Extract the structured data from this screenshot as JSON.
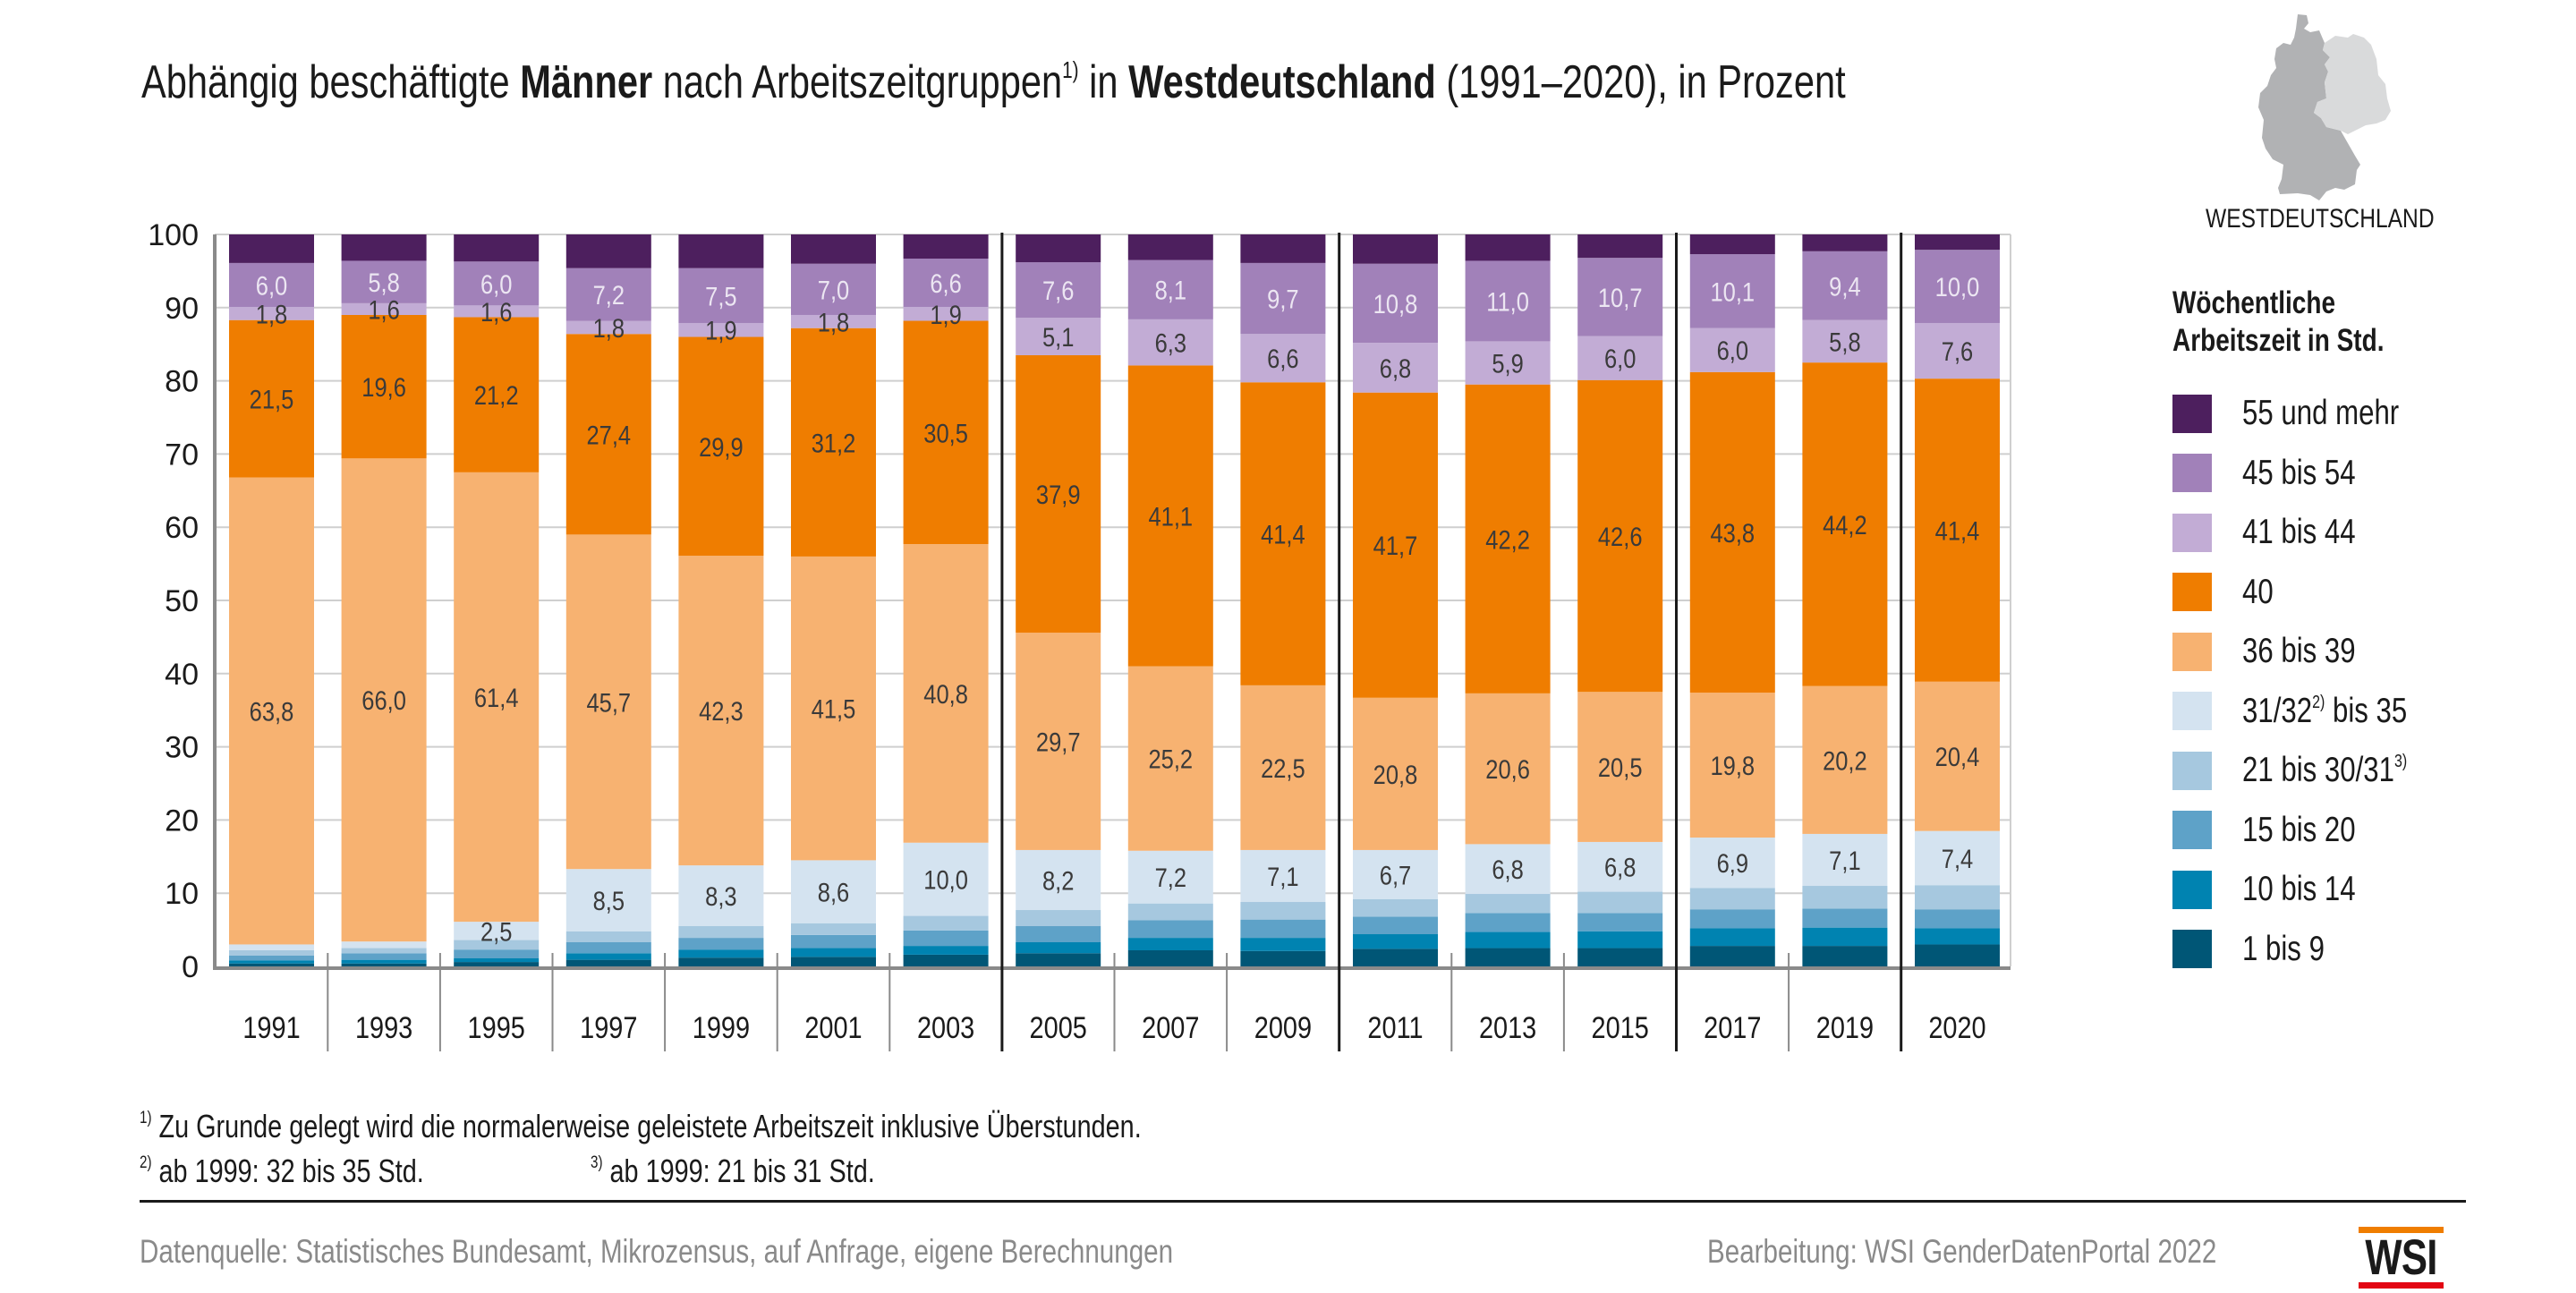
{
  "header": {
    "title_parts": {
      "p1": "Abhängig beschäftigte ",
      "p2": "Männer",
      "p3": " nach Arbeitszeitgruppen",
      "sup": "1)",
      "p4": " in ",
      "p5": "Westdeutschland",
      "p6": " (1991–2020), in Prozent"
    },
    "map_label": "WESTDEUTSCHLAND",
    "map_colors": {
      "west": "#b1b2b4",
      "east": "#d9dadb"
    }
  },
  "legend": {
    "title_line1": "Wöchentliche",
    "title_line2": "Arbeitszeit in Std.",
    "items": [
      {
        "label": "55 und mehr",
        "sup": "",
        "suffix": "",
        "color": "#4d1f5e"
      },
      {
        "label": "45 bis 54",
        "sup": "",
        "suffix": "",
        "color": "#a181b9"
      },
      {
        "label": "41 bis 44",
        "sup": "",
        "suffix": "",
        "color": "#c2acd5"
      },
      {
        "label": "40",
        "sup": "",
        "suffix": "",
        "color": "#ef7d00"
      },
      {
        "label": "36 bis 39",
        "sup": "",
        "suffix": "",
        "color": "#f7b271"
      },
      {
        "label": "31/32",
        "sup": "2)",
        "suffix": " bis 35",
        "color": "#d4e3f0"
      },
      {
        "label": "21 bis 30/31",
        "sup": "3)",
        "suffix": "",
        "color": "#a6c8df"
      },
      {
        "label": "15 bis 20",
        "sup": "",
        "suffix": "",
        "color": "#5ea2c8"
      },
      {
        "label": "10 bis 14",
        "sup": "",
        "suffix": "",
        "color": "#0083b1"
      },
      {
        "label": "1 bis 9",
        "sup": "",
        "suffix": "",
        "color": "#005676"
      }
    ]
  },
  "chart_data": {
    "type": "bar",
    "stacked": true,
    "title": "Abhängig beschäftigte Männer nach Arbeitszeitgruppen in Westdeutschland (1991–2020), in Prozent",
    "xlabel": "",
    "ylabel": "",
    "ylim": [
      0,
      100
    ],
    "yticks": [
      0,
      10,
      20,
      30,
      40,
      50,
      60,
      70,
      80,
      90,
      100
    ],
    "grid": true,
    "legend_position": "right",
    "categories": [
      "1991",
      "1993",
      "1995",
      "1997",
      "1999",
      "2001",
      "2003",
      "2005",
      "2007",
      "2009",
      "2011",
      "2013",
      "2015",
      "2017",
      "2019",
      "2020"
    ],
    "group_separators_after": [
      "2003",
      "2009",
      "2015",
      "2019"
    ],
    "series": [
      {
        "name": "1 bis 9",
        "color": "#005676",
        "labeled": false,
        "values": [
          0.4,
          0.4,
          0.6,
          0.9,
          1.2,
          1.3,
          1.6,
          1.8,
          2.2,
          2.1,
          2.4,
          2.5,
          2.5,
          2.8,
          2.8,
          3.0
        ]
      },
      {
        "name": "10 bis 14",
        "color": "#0083b1",
        "labeled": false,
        "values": [
          0.4,
          0.5,
          0.5,
          0.9,
          1.1,
          1.2,
          1.2,
          1.5,
          1.7,
          1.8,
          2.0,
          2.2,
          2.3,
          2.4,
          2.5,
          2.2
        ]
      },
      {
        "name": "15 bis 20",
        "color": "#5ea2c8",
        "labeled": false,
        "values": [
          0.7,
          0.9,
          1.2,
          1.5,
          1.6,
          1.8,
          2.1,
          2.2,
          2.4,
          2.5,
          2.4,
          2.6,
          2.5,
          2.6,
          2.6,
          2.6
        ]
      },
      {
        "name": "21 bis 30/31",
        "color": "#a6c8df",
        "labeled": false,
        "values": [
          0.7,
          0.7,
          1.3,
          1.5,
          1.6,
          1.6,
          2.0,
          2.2,
          2.3,
          2.4,
          2.4,
          2.6,
          2.9,
          2.9,
          3.1,
          3.3
        ]
      },
      {
        "name": "31/32 bis 35",
        "color": "#d4e3f0",
        "labeled": true,
        "values": [
          0.8,
          0.9,
          2.5,
          8.5,
          8.3,
          8.6,
          10.0,
          8.2,
          7.2,
          7.1,
          6.7,
          6.8,
          6.8,
          6.9,
          7.1,
          7.4
        ],
        "labels": [
          "",
          "",
          "2,5",
          "8,5",
          "8,3",
          "8,6",
          "10,0",
          "8,2",
          "7,2",
          "7,1",
          "6,7",
          "6,8",
          "6,8",
          "6,9",
          "7,1",
          "7,4"
        ]
      },
      {
        "name": "36 bis 39",
        "color": "#f7b271",
        "labeled": true,
        "values": [
          63.8,
          66.0,
          61.4,
          45.7,
          42.3,
          41.5,
          40.8,
          29.7,
          25.2,
          22.5,
          20.8,
          20.6,
          20.5,
          19.8,
          20.2,
          20.4
        ],
        "labels": [
          "63,8",
          "66,0",
          "61,4",
          "45,7",
          "42,3",
          "41,5",
          "40,8",
          "29,7",
          "25,2",
          "22,5",
          "20,8",
          "20,6",
          "20,5",
          "19,8",
          "20,2",
          "20,4"
        ]
      },
      {
        "name": "40",
        "color": "#ef7d00",
        "labeled": true,
        "values": [
          21.5,
          19.6,
          21.2,
          27.4,
          29.9,
          31.2,
          30.5,
          37.9,
          41.1,
          41.4,
          41.7,
          42.2,
          42.6,
          43.8,
          44.2,
          41.4
        ],
        "labels": [
          "21,5",
          "19,6",
          "21,2",
          "27,4",
          "29,9",
          "31,2",
          "30,5",
          "37,9",
          "41,1",
          "41,4",
          "41,7",
          "42,2",
          "42,6",
          "43,8",
          "44,2",
          "41,4"
        ]
      },
      {
        "name": "41 bis 44",
        "color": "#c2acd5",
        "labeled": true,
        "values": [
          1.8,
          1.6,
          1.6,
          1.8,
          1.9,
          1.8,
          1.9,
          5.1,
          6.3,
          6.6,
          6.8,
          5.9,
          6.0,
          6.0,
          5.8,
          7.6
        ],
        "labels": [
          "1,8",
          "1,6",
          "1,6",
          "1,8",
          "1,9",
          "1,8",
          "1,9",
          "5,1",
          "6,3",
          "6,6",
          "6,8",
          "5,9",
          "6,0",
          "6,0",
          "5,8",
          "7,6"
        ]
      },
      {
        "name": "45 bis 54",
        "color": "#a181b9",
        "labeled": true,
        "values": [
          6.0,
          5.8,
          6.0,
          7.2,
          7.5,
          7.0,
          6.6,
          7.6,
          8.1,
          9.7,
          10.8,
          11.0,
          10.7,
          10.1,
          9.4,
          10.0
        ],
        "labels": [
          "6,0",
          "5,8",
          "6,0",
          "7,2",
          "7,5",
          "7,0",
          "6,6",
          "7,6",
          "8,1",
          "9,7",
          "10,8",
          "11,0",
          "10,7",
          "10,1",
          "9,4",
          "10,0"
        ]
      },
      {
        "name": "55 und mehr",
        "color": "#4d1f5e",
        "labeled": false,
        "values": [
          3.9,
          3.6,
          3.7,
          4.6,
          4.6,
          4.0,
          3.3,
          3.8,
          3.5,
          3.9,
          4.0,
          3.6,
          3.2,
          2.7,
          2.3,
          2.1
        ]
      }
    ],
    "label_colors": {
      "light_on_dark": "#ece6f2",
      "dark": "#3a3a3a"
    }
  },
  "footnotes": {
    "n1_sup": "1)",
    "n1_text": " Zu Grunde gelegt wird die normalerweise geleistete Arbeitszeit inklusive Überstunden.",
    "n2_sup": "2)",
    "n2_text": " ab 1999: 32 bis 35 Std.",
    "n3_sup": "3)",
    "n3_text": " ab 1999: 21 bis 31 Std."
  },
  "footer": {
    "source": "Datenquelle: Statistisches Bundesamt, Mikrozensus, auf Anfrage, eigene Berechnungen",
    "credit": "Bearbeitung: WSI GenderDatenPortal 2022",
    "logo_text": "WSI"
  }
}
